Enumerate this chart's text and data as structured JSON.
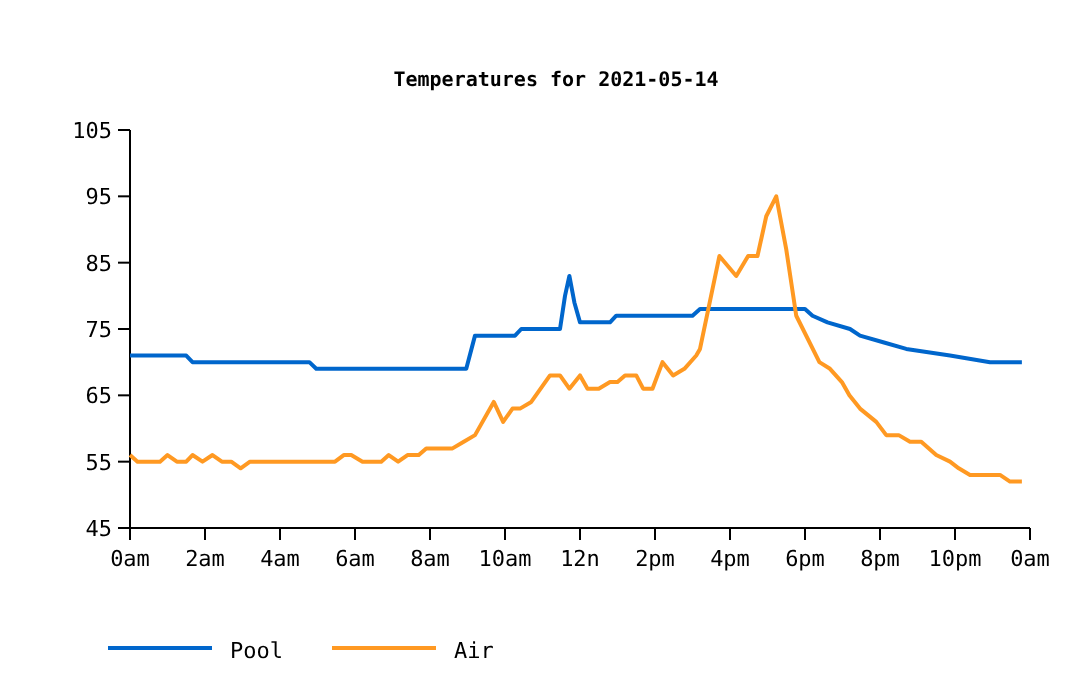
{
  "chart_data": {
    "type": "line",
    "title": "Temperatures for 2021-05-14",
    "legend": "bottom left",
    "grid": false,
    "marker": "none",
    "line_style": "solid",
    "xlim": [
      "2021-05-14T00:00",
      "2021-05-15T00:00"
    ],
    "xticks": [
      {
        "value": "2021-05-14T00:00",
        "label": "0am"
      },
      {
        "value": "2021-05-14T02:00",
        "label": "2am"
      },
      {
        "value": "2021-05-14T04:00",
        "label": "4am"
      },
      {
        "value": "2021-05-14T06:00",
        "label": "6am"
      },
      {
        "value": "2021-05-14T08:00",
        "label": "8am"
      },
      {
        "value": "2021-05-14T10:00",
        "label": "10am"
      },
      {
        "value": "2021-05-14T12:00",
        "label": "12n"
      },
      {
        "value": "2021-05-14T14:00",
        "label": "2pm"
      },
      {
        "value": "2021-05-14T16:00",
        "label": "4pm"
      },
      {
        "value": "2021-05-14T18:00",
        "label": "6pm"
      },
      {
        "value": "2021-05-14T20:00",
        "label": "8pm"
      },
      {
        "value": "2021-05-14T22:00",
        "label": "10pm"
      },
      {
        "value": "2021-05-15T00:00",
        "label": "0am"
      }
    ],
    "ylim": [
      45,
      105
    ],
    "yticks": [
      45,
      55,
      65,
      75,
      85,
      95,
      105
    ],
    "series": [
      {
        "name": "Pool",
        "color": "#0066cc",
        "x": [
          "2021-05-14T00:00",
          "2021-05-14T01:30",
          "2021-05-14T01:40",
          "2021-05-14T04:47",
          "2021-05-14T04:58",
          "2021-05-14T08:58",
          "2021-05-14T09:12",
          "2021-05-14T10:16",
          "2021-05-14T10:26",
          "2021-05-14T11:28",
          "2021-05-14T11:36",
          "2021-05-14T11:43",
          "2021-05-14T11:51",
          "2021-05-14T12:00",
          "2021-05-14T12:48",
          "2021-05-14T12:58",
          "2021-05-14T15:00",
          "2021-05-14T15:12",
          "2021-05-14T18:00",
          "2021-05-14T18:12",
          "2021-05-14T18:36",
          "2021-05-14T19:12",
          "2021-05-14T19:28",
          "2021-05-14T20:05",
          "2021-05-14T20:42",
          "2021-05-14T21:52",
          "2021-05-14T22:56",
          "2021-05-14T23:47"
        ],
        "values": [
          71,
          71,
          70,
          70,
          69,
          69,
          74,
          74,
          75,
          75,
          80,
          83,
          79,
          76,
          76,
          77,
          77,
          78,
          78,
          77,
          76,
          75,
          74,
          73,
          72,
          71,
          70,
          70
        ]
      },
      {
        "name": "Air",
        "color": "#ff9922",
        "x": [
          "2021-05-14T00:00",
          "2021-05-14T00:12",
          "2021-05-14T00:48",
          "2021-05-14T01:00",
          "2021-05-14T01:15",
          "2021-05-14T01:30",
          "2021-05-14T01:40",
          "2021-05-14T01:56",
          "2021-05-14T02:12",
          "2021-05-14T02:27",
          "2021-05-14T02:42",
          "2021-05-14T02:57",
          "2021-05-14T03:12",
          "2021-05-14T05:28",
          "2021-05-14T05:42",
          "2021-05-14T05:54",
          "2021-05-14T06:12",
          "2021-05-14T06:42",
          "2021-05-14T06:54",
          "2021-05-14T07:09",
          "2021-05-14T07:24",
          "2021-05-14T07:42",
          "2021-05-14T07:54",
          "2021-05-14T08:36",
          "2021-05-14T08:54",
          "2021-05-14T09:12",
          "2021-05-14T09:42",
          "2021-05-14T09:57",
          "2021-05-14T10:12",
          "2021-05-14T10:24",
          "2021-05-14T10:42",
          "2021-05-14T11:12",
          "2021-05-14T11:28",
          "2021-05-14T11:43",
          "2021-05-14T12:00",
          "2021-05-14T12:12",
          "2021-05-14T12:30",
          "2021-05-14T12:48",
          "2021-05-14T13:00",
          "2021-05-14T13:12",
          "2021-05-14T13:30",
          "2021-05-14T13:41",
          "2021-05-14T13:56",
          "2021-05-14T14:12",
          "2021-05-14T14:29",
          "2021-05-14T14:47",
          "2021-05-14T15:06",
          "2021-05-14T15:12",
          "2021-05-14T15:43",
          "2021-05-14T16:10",
          "2021-05-14T16:29",
          "2021-05-14T16:44",
          "2021-05-14T16:58",
          "2021-05-14T17:14",
          "2021-05-14T17:30",
          "2021-05-14T17:46",
          "2021-05-14T18:23",
          "2021-05-14T18:40",
          "2021-05-14T18:59",
          "2021-05-14T19:11",
          "2021-05-14T19:28",
          "2021-05-14T19:54",
          "2021-05-14T20:10",
          "2021-05-14T20:30",
          "2021-05-14T20:48",
          "2021-05-14T21:06",
          "2021-05-14T21:30",
          "2021-05-14T21:52",
          "2021-05-14T22:06",
          "2021-05-14T22:24",
          "2021-05-14T23:12",
          "2021-05-14T23:28",
          "2021-05-14T23:47"
        ],
        "values": [
          56,
          55,
          55,
          56,
          55,
          55,
          56,
          55,
          56,
          55,
          55,
          54,
          55,
          55,
          56,
          56,
          55,
          55,
          56,
          55,
          56,
          56,
          57,
          57,
          58,
          59,
          64,
          61,
          63,
          63,
          64,
          68,
          68,
          66,
          68,
          66,
          66,
          67,
          67,
          68,
          68,
          66,
          66,
          70,
          68,
          69,
          71,
          72,
          86,
          83,
          86,
          86,
          92,
          95,
          87,
          77,
          70,
          69,
          67,
          65,
          63,
          61,
          59,
          59,
          58,
          58,
          56,
          55,
          54,
          53,
          53,
          52,
          52
        ]
      }
    ]
  }
}
